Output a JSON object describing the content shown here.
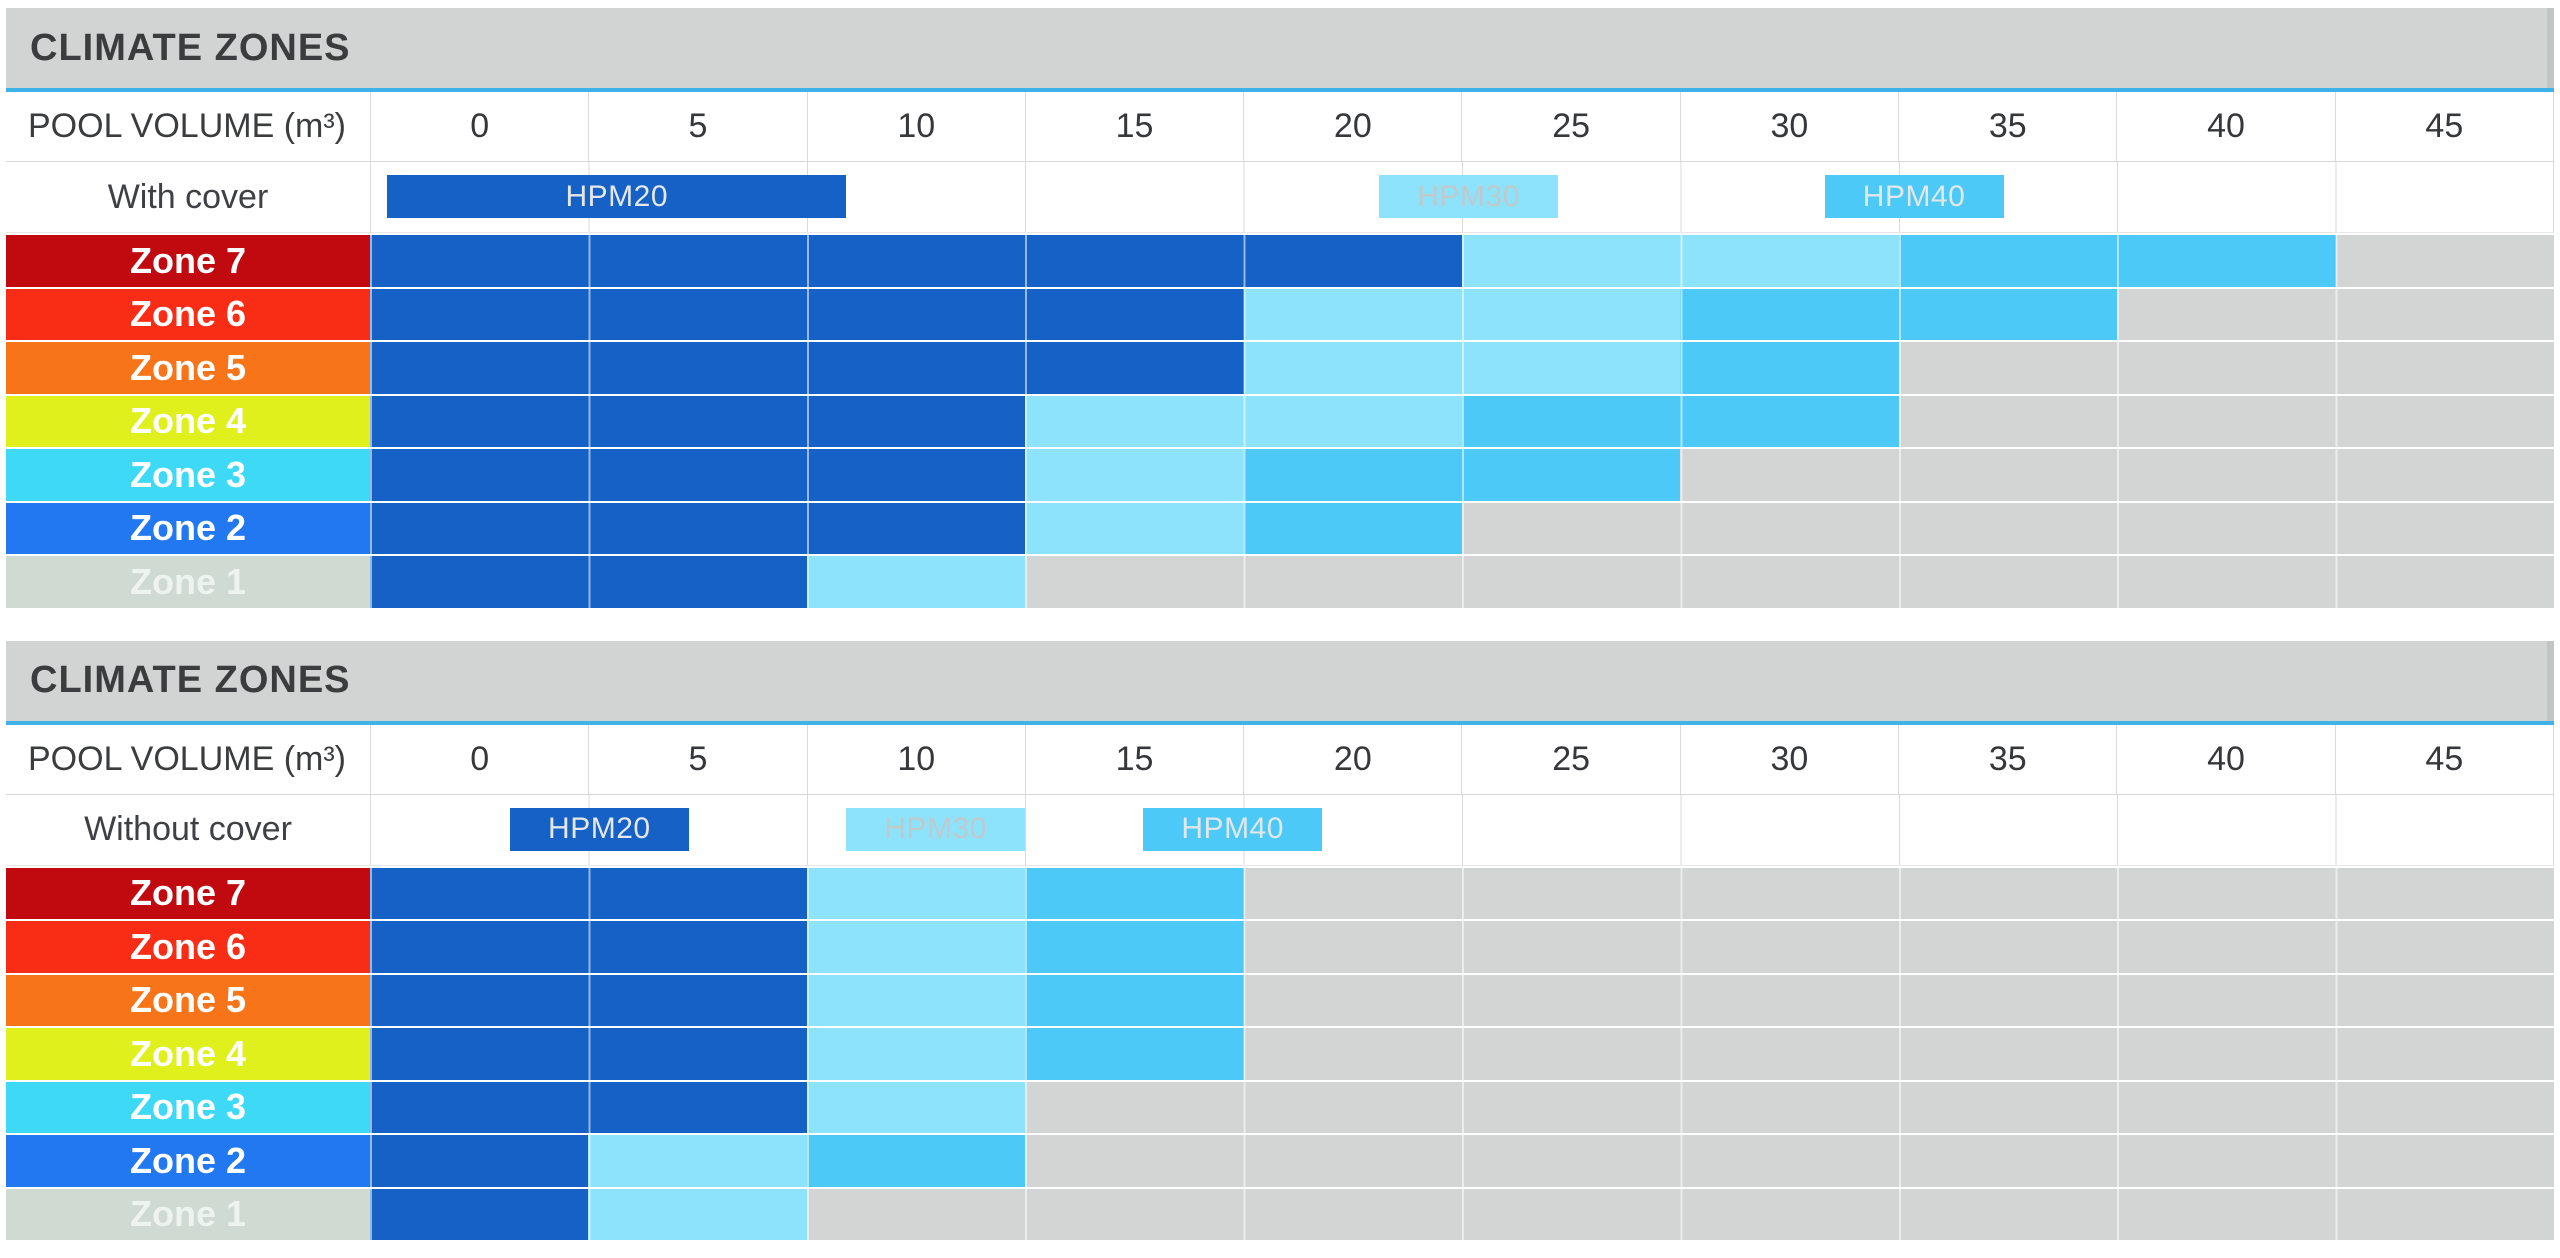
{
  "colors": {
    "hpm20": "#1561C5",
    "hpm30": "#8DE3FB",
    "hpm40": "#4CC9F7",
    "empty_cell": "#D3D4D4",
    "title_band": "#D2D3D3",
    "title_underline": "#3EB3EA"
  },
  "zone_styles": {
    "Zone 7": {
      "bg": "#C10A10",
      "text": "#FFFFFF"
    },
    "Zone 6": {
      "bg": "#F92D15",
      "text": "#FFFFFF"
    },
    "Zone 5": {
      "bg": "#F87418",
      "text": "#FFFFFF"
    },
    "Zone 4": {
      "bg": "#DFF01D",
      "text": "#FFFFFF"
    },
    "Zone 3": {
      "bg": "#3FD9F8",
      "text": "#FFFFFF"
    },
    "Zone 2": {
      "bg": "#2178F1",
      "text": "#FFFFFF"
    },
    "Zone 1": {
      "bg": "#CFDAD3",
      "text": "#EDF3EE"
    }
  },
  "chart_data": [
    {
      "type": "bar",
      "title": "CLIMATE ZONES",
      "x_axis_label": "POOL VOLUME (m³)",
      "x_ticks": [
        "0",
        "5",
        "10",
        "15",
        "20",
        "25",
        "30",
        "35",
        "40",
        "45"
      ],
      "x_range": [
        0,
        50
      ],
      "condition_label": "With cover",
      "legend": [
        {
          "label": "HPM20",
          "product": "hpm20",
          "from": 0.4,
          "to": 10.9,
          "text_color": "#E5E7E9"
        },
        {
          "label": "HPM30",
          "product": "hpm30",
          "from": 23.1,
          "to": 27.2,
          "text_color": "#C2C9CC"
        },
        {
          "label": "HPM40",
          "product": "hpm40",
          "from": 33.3,
          "to": 37.4,
          "text_color": "#E2E7E9"
        }
      ],
      "zones": [
        {
          "label": "Zone 7",
          "segments": [
            {
              "product": "hpm20",
              "from": 0,
              "to": 25
            },
            {
              "product": "hpm30",
              "from": 25,
              "to": 35
            },
            {
              "product": "hpm40",
              "from": 35,
              "to": 45
            }
          ]
        },
        {
          "label": "Zone 6",
          "segments": [
            {
              "product": "hpm20",
              "from": 0,
              "to": 20
            },
            {
              "product": "hpm30",
              "from": 20,
              "to": 30
            },
            {
              "product": "hpm40",
              "from": 30,
              "to": 40
            }
          ]
        },
        {
          "label": "Zone 5",
          "segments": [
            {
              "product": "hpm20",
              "from": 0,
              "to": 20
            },
            {
              "product": "hpm30",
              "from": 20,
              "to": 30
            },
            {
              "product": "hpm40",
              "from": 30,
              "to": 35
            }
          ]
        },
        {
          "label": "Zone 4",
          "segments": [
            {
              "product": "hpm20",
              "from": 0,
              "to": 15
            },
            {
              "product": "hpm30",
              "from": 15,
              "to": 25
            },
            {
              "product": "hpm40",
              "from": 25,
              "to": 35
            }
          ]
        },
        {
          "label": "Zone 3",
          "segments": [
            {
              "product": "hpm20",
              "from": 0,
              "to": 15
            },
            {
              "product": "hpm30",
              "from": 15,
              "to": 20
            },
            {
              "product": "hpm40",
              "from": 20,
              "to": 30
            }
          ]
        },
        {
          "label": "Zone 2",
          "segments": [
            {
              "product": "hpm20",
              "from": 0,
              "to": 15
            },
            {
              "product": "hpm30",
              "from": 15,
              "to": 20
            },
            {
              "product": "hpm40",
              "from": 20,
              "to": 25
            }
          ]
        },
        {
          "label": "Zone 1",
          "segments": [
            {
              "product": "hpm20",
              "from": 0,
              "to": 10
            },
            {
              "product": "hpm30",
              "from": 10,
              "to": 15
            }
          ]
        }
      ]
    },
    {
      "type": "bar",
      "title": "CLIMATE ZONES",
      "x_axis_label": "POOL VOLUME (m³)",
      "x_ticks": [
        "0",
        "5",
        "10",
        "15",
        "20",
        "25",
        "30",
        "35",
        "40",
        "45"
      ],
      "x_range": [
        0,
        50
      ],
      "condition_label": "Without cover",
      "legend": [
        {
          "label": "HPM20",
          "product": "hpm20",
          "from": 3.2,
          "to": 7.3,
          "text_color": "#E5E7E9"
        },
        {
          "label": "HPM30",
          "product": "hpm30",
          "from": 10.9,
          "to": 15.0,
          "text_color": "#C2C9CC"
        },
        {
          "label": "HPM40",
          "product": "hpm40",
          "from": 17.7,
          "to": 21.8,
          "text_color": "#E2E7E9"
        }
      ],
      "zones": [
        {
          "label": "Zone 7",
          "segments": [
            {
              "product": "hpm20",
              "from": 0,
              "to": 10
            },
            {
              "product": "hpm30",
              "from": 10,
              "to": 15
            },
            {
              "product": "hpm40",
              "from": 15,
              "to": 20
            }
          ]
        },
        {
          "label": "Zone 6",
          "segments": [
            {
              "product": "hpm20",
              "from": 0,
              "to": 10
            },
            {
              "product": "hpm30",
              "from": 10,
              "to": 15
            },
            {
              "product": "hpm40",
              "from": 15,
              "to": 20
            }
          ]
        },
        {
          "label": "Zone 5",
          "segments": [
            {
              "product": "hpm20",
              "from": 0,
              "to": 10
            },
            {
              "product": "hpm30",
              "from": 10,
              "to": 15
            },
            {
              "product": "hpm40",
              "from": 15,
              "to": 20
            }
          ]
        },
        {
          "label": "Zone 4",
          "segments": [
            {
              "product": "hpm20",
              "from": 0,
              "to": 10
            },
            {
              "product": "hpm30",
              "from": 10,
              "to": 15
            },
            {
              "product": "hpm40",
              "from": 15,
              "to": 20
            }
          ]
        },
        {
          "label": "Zone 3",
          "segments": [
            {
              "product": "hpm20",
              "from": 0,
              "to": 10
            },
            {
              "product": "hpm30",
              "from": 10,
              "to": 15
            }
          ]
        },
        {
          "label": "Zone 2",
          "segments": [
            {
              "product": "hpm20",
              "from": 0,
              "to": 5
            },
            {
              "product": "hpm30",
              "from": 5,
              "to": 10
            },
            {
              "product": "hpm40",
              "from": 10,
              "to": 15
            }
          ]
        },
        {
          "label": "Zone 1",
          "segments": [
            {
              "product": "hpm20",
              "from": 0,
              "to": 5
            },
            {
              "product": "hpm30",
              "from": 5,
              "to": 10
            }
          ]
        }
      ]
    }
  ]
}
